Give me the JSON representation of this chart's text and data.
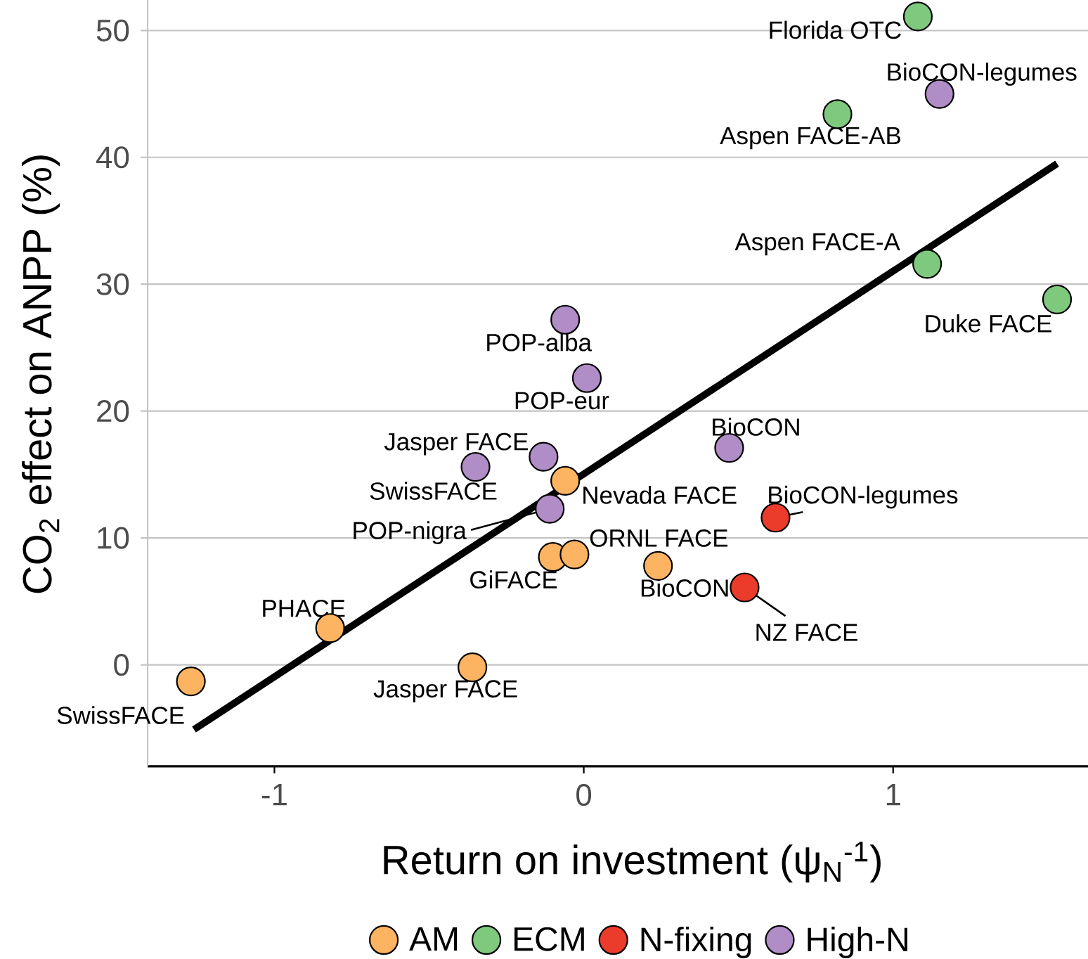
{
  "chart_data": {
    "type": "scatter",
    "xlabel": "Return on investment (ψ$_{N}$$^{-1}$)",
    "ylabel": "CO$_{2}$ effect on ANPP (%)",
    "xlim": [
      -1.41,
      1.63
    ],
    "ylim": [
      -8,
      52.4
    ],
    "xticks": [
      -1,
      0,
      1
    ],
    "yticks": [
      0,
      10,
      20,
      30,
      40,
      50
    ],
    "grid": "y",
    "legend": "bottom",
    "series": [
      {
        "type": "line",
        "color": "#000000",
        "x": [
          -1.26,
          1.53
        ],
        "values": [
          -5.1,
          39.5
        ]
      },
      {
        "name": "AM",
        "color": "#fdb462",
        "marker": "circle",
        "x": [
          -0.06,
          -0.1,
          -0.03,
          0.24,
          -0.82,
          -0.36,
          -1.27
        ],
        "values": [
          14.5,
          8.5,
          8.7,
          7.8,
          2.9,
          -0.2,
          -1.3
        ]
      },
      {
        "name": "ECM",
        "color": "#7fc97f",
        "marker": "circle",
        "x": [
          1.08,
          0.82,
          1.11,
          1.53
        ],
        "values": [
          51.1,
          43.4,
          31.6,
          28.8
        ]
      },
      {
        "name": "N-fixing",
        "color": "#ea3b2b",
        "marker": "circle",
        "x": [
          0.62,
          0.52
        ],
        "values": [
          11.6,
          6.1
        ]
      },
      {
        "name": "High-N",
        "color": "#b08dc6",
        "marker": "circle",
        "x": [
          1.15,
          -0.06,
          0.01,
          0.47,
          -0.13,
          -0.35,
          -0.11
        ],
        "values": [
          45.0,
          27.2,
          22.6,
          17.1,
          16.4,
          15.6,
          12.3
        ]
      }
    ],
    "annotations": [
      {
        "text": "Florida OTC",
        "x": 1.08,
        "y": 51.1
      },
      {
        "text": "BioCON-legumes",
        "x": 1.15,
        "y": 45.0
      },
      {
        "text": "Aspen FACE-AB",
        "x": 0.82,
        "y": 43.4
      },
      {
        "text": "Aspen FACE-A",
        "x": 1.11,
        "y": 31.6
      },
      {
        "text": "Duke FACE",
        "x": 1.53,
        "y": 28.8
      },
      {
        "text": "POP-alba",
        "x": -0.06,
        "y": 27.2
      },
      {
        "text": "POP-eur",
        "x": 0.01,
        "y": 22.6
      },
      {
        "text": "BioCON",
        "x": 0.47,
        "y": 17.1
      },
      {
        "text": "Jasper FACE",
        "x": -0.13,
        "y": 16.4
      },
      {
        "text": "SwissFACE",
        "x": -0.35,
        "y": 15.6
      },
      {
        "text": "Nevada FACE",
        "x": -0.06,
        "y": 14.5
      },
      {
        "text": "BioCON-legumes",
        "x": 0.62,
        "y": 11.6
      },
      {
        "text": "POP-nigra",
        "x": -0.11,
        "y": 12.3
      },
      {
        "text": "ORNL FACE",
        "x": -0.03,
        "y": 8.7
      },
      {
        "text": "GiFACE",
        "x": -0.1,
        "y": 8.5
      },
      {
        "text": "BioCON",
        "x": 0.24,
        "y": 7.8
      },
      {
        "text": "NZ FACE",
        "x": 0.52,
        "y": 6.1
      },
      {
        "text": "PHACE",
        "x": -0.82,
        "y": 2.9
      },
      {
        "text": "Jasper FACE",
        "x": -0.36,
        "y": -0.2
      },
      {
        "text": "SwissFACE",
        "x": -1.27,
        "y": -1.3
      }
    ]
  }
}
